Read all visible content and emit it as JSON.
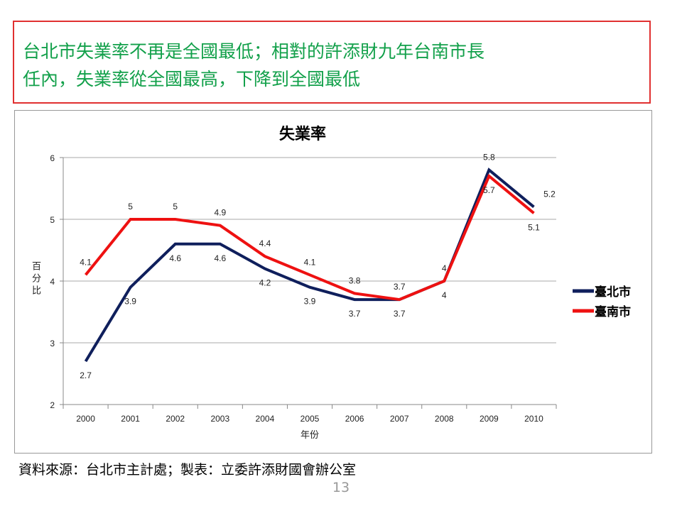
{
  "headline": {
    "line1": "台北市失業率不再是全國最低；相對的許添財九年台南市長",
    "line2": "任內，失業率從全國最高，下降到全國最低"
  },
  "source": "資料來源：台北市主計處；製表：立委許添財國會辦公室",
  "page_number": "13",
  "chart_data": {
    "type": "line",
    "title": "失業率",
    "xlabel": "年份",
    "ylabel": "百分比",
    "ylim": [
      2,
      6
    ],
    "yticks": [
      "2",
      "3",
      "4",
      "5",
      "6"
    ],
    "categories": [
      "2000",
      "2001",
      "2002",
      "2003",
      "2004",
      "2005",
      "2006",
      "2007",
      "2008",
      "2009",
      "2010"
    ],
    "grid": true,
    "legend_position": "right",
    "series": [
      {
        "name": "臺北市",
        "color": "#0f1f5c",
        "values": [
          2.7,
          3.9,
          4.6,
          4.6,
          4.2,
          3.9,
          3.7,
          3.7,
          4,
          5.8,
          5.2
        ]
      },
      {
        "name": "臺南市",
        "color": "#ee1111",
        "values": [
          4.1,
          5,
          5,
          4.9,
          4.4,
          4.1,
          3.8,
          3.7,
          4,
          5.7,
          5.1
        ]
      }
    ]
  }
}
